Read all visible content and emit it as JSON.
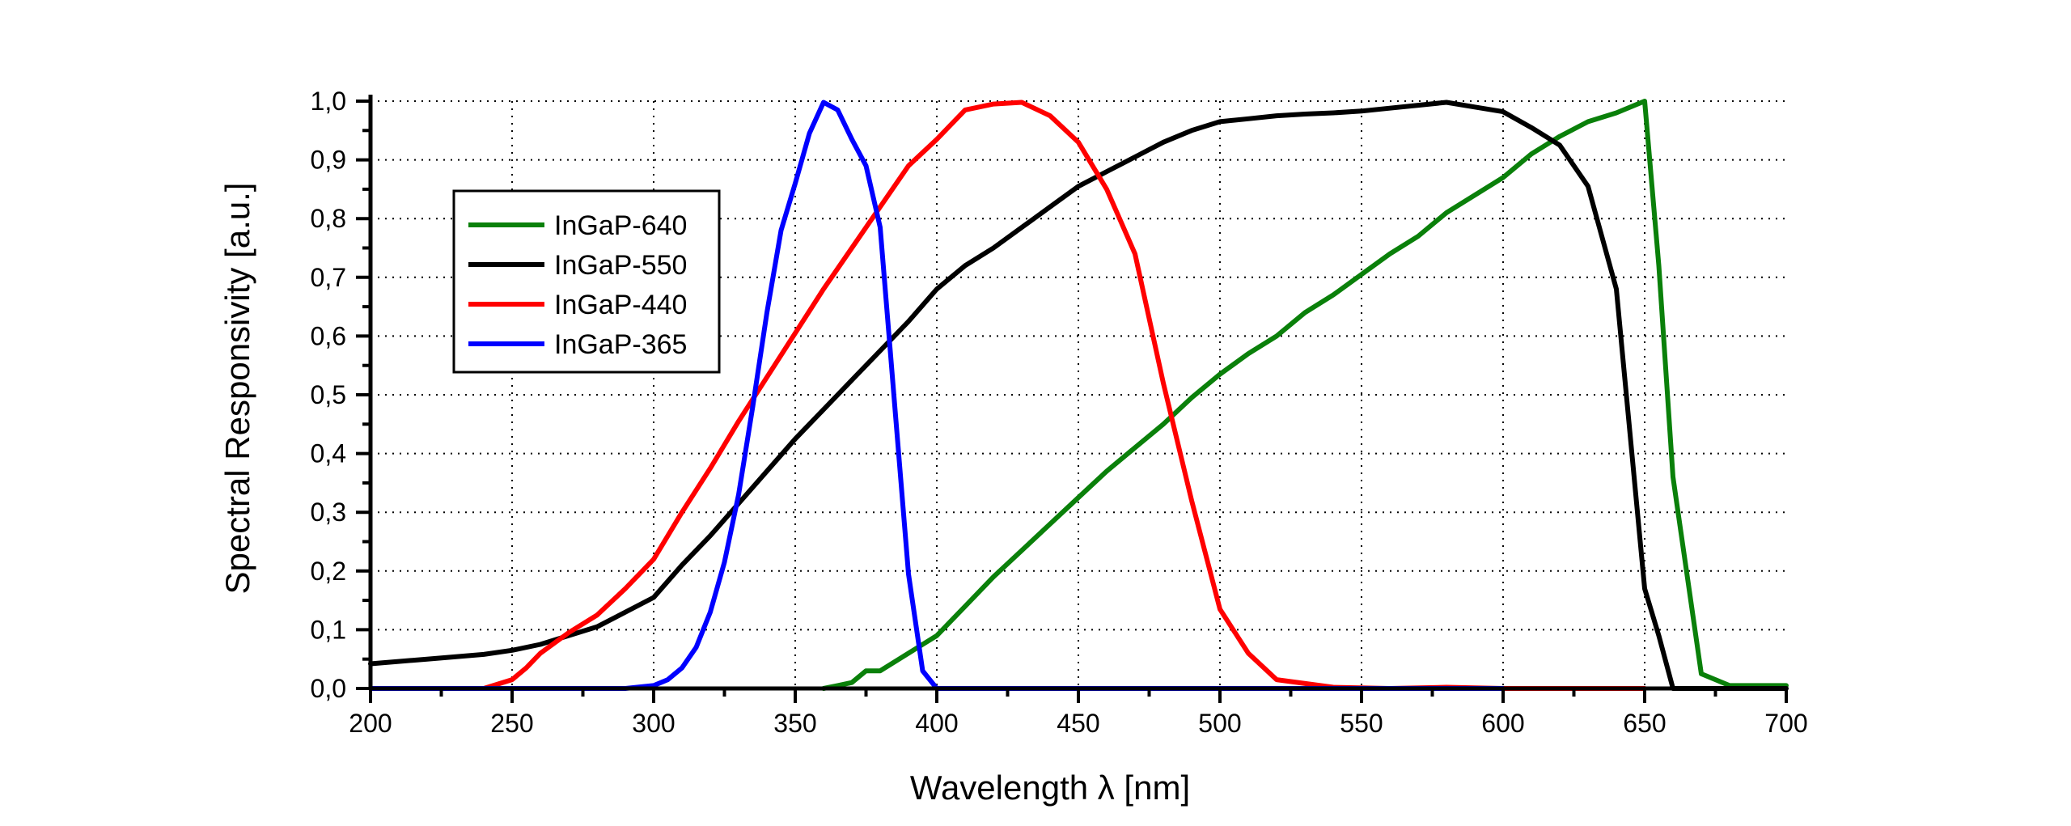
{
  "chart_data": {
    "type": "line",
    "xlabel": "Wavelength λ [nm]",
    "ylabel": "Spectral Responsivity [a.u.]",
    "xlim": [
      200,
      700
    ],
    "ylim": [
      0.0,
      1.0
    ],
    "x_ticks": [
      200,
      250,
      300,
      350,
      400,
      450,
      500,
      550,
      600,
      650,
      700
    ],
    "x_tick_labels": [
      "200",
      "250",
      "300",
      "350",
      "400",
      "450",
      "500",
      "550",
      "600",
      "650",
      "700"
    ],
    "y_ticks": [
      0.0,
      0.1,
      0.2,
      0.3,
      0.4,
      0.5,
      0.6,
      0.7,
      0.8,
      0.9,
      1.0
    ],
    "y_tick_labels": [
      "0,0",
      "0,1",
      "0,2",
      "0,3",
      "0,4",
      "0,5",
      "0,6",
      "0,7",
      "0,8",
      "0,9",
      "1,0"
    ],
    "grid": true,
    "legend_position": "upper-left",
    "series": [
      {
        "name": "InGaP-640",
        "color": "#0a800a",
        "x": [
          360,
          365,
          370,
          375,
          380,
          390,
          400,
          410,
          420,
          430,
          440,
          450,
          460,
          470,
          480,
          490,
          500,
          510,
          520,
          530,
          540,
          550,
          560,
          570,
          580,
          590,
          600,
          610,
          620,
          630,
          640,
          650,
          655,
          660,
          670,
          680,
          690,
          700
        ],
        "y": [
          0.0,
          0.005,
          0.01,
          0.03,
          0.03,
          0.06,
          0.09,
          0.14,
          0.19,
          0.235,
          0.28,
          0.325,
          0.37,
          0.41,
          0.45,
          0.495,
          0.535,
          0.57,
          0.6,
          0.64,
          0.67,
          0.705,
          0.74,
          0.77,
          0.81,
          0.84,
          0.87,
          0.91,
          0.94,
          0.965,
          0.98,
          1.0,
          0.72,
          0.36,
          0.025,
          0.005,
          0.005,
          0.005
        ]
      },
      {
        "name": "InGaP-550",
        "color": "#000000",
        "x": [
          200,
          220,
          240,
          250,
          260,
          280,
          300,
          310,
          320,
          330,
          340,
          350,
          360,
          370,
          380,
          390,
          400,
          410,
          420,
          430,
          440,
          450,
          460,
          470,
          480,
          490,
          500,
          510,
          520,
          530,
          540,
          550,
          560,
          570,
          580,
          590,
          600,
          610,
          620,
          630,
          640,
          650,
          655,
          660,
          680,
          700
        ],
        "y": [
          0.042,
          0.05,
          0.058,
          0.065,
          0.075,
          0.105,
          0.155,
          0.21,
          0.26,
          0.315,
          0.37,
          0.425,
          0.475,
          0.525,
          0.575,
          0.625,
          0.68,
          0.72,
          0.75,
          0.785,
          0.82,
          0.855,
          0.88,
          0.905,
          0.93,
          0.95,
          0.965,
          0.97,
          0.975,
          0.978,
          0.98,
          0.983,
          0.988,
          0.993,
          0.998,
          0.99,
          0.982,
          0.955,
          0.925,
          0.855,
          0.68,
          0.17,
          0.09,
          0.0,
          0.0,
          0.0
        ]
      },
      {
        "name": "InGaP-440",
        "color": "#ff0000",
        "x": [
          200,
          240,
          250,
          255,
          260,
          270,
          280,
          290,
          300,
          310,
          320,
          330,
          340,
          350,
          360,
          370,
          380,
          390,
          400,
          410,
          420,
          430,
          440,
          450,
          460,
          470,
          480,
          490,
          500,
          510,
          520,
          540,
          560,
          580,
          600,
          620,
          650
        ],
        "y": [
          0.0,
          0.0,
          0.015,
          0.035,
          0.06,
          0.095,
          0.125,
          0.17,
          0.22,
          0.3,
          0.375,
          0.455,
          0.53,
          0.605,
          0.68,
          0.75,
          0.82,
          0.89,
          0.935,
          0.985,
          0.995,
          0.998,
          0.975,
          0.93,
          0.85,
          0.74,
          0.52,
          0.32,
          0.135,
          0.06,
          0.015,
          0.002,
          0.0,
          0.002,
          0.0,
          0.0,
          0.0
        ]
      },
      {
        "name": "InGaP-365",
        "color": "#0000ff",
        "x": [
          200,
          290,
          300,
          305,
          310,
          315,
          320,
          325,
          330,
          335,
          340,
          345,
          350,
          355,
          360,
          365,
          370,
          375,
          380,
          385,
          390,
          395,
          400,
          450,
          500,
          550,
          600
        ],
        "y": [
          0.0,
          0.0,
          0.005,
          0.015,
          0.035,
          0.07,
          0.13,
          0.215,
          0.33,
          0.48,
          0.64,
          0.78,
          0.86,
          0.945,
          0.998,
          0.985,
          0.935,
          0.89,
          0.785,
          0.49,
          0.195,
          0.03,
          0.0,
          0.0,
          0.0,
          0.0,
          0.0
        ]
      }
    ]
  }
}
